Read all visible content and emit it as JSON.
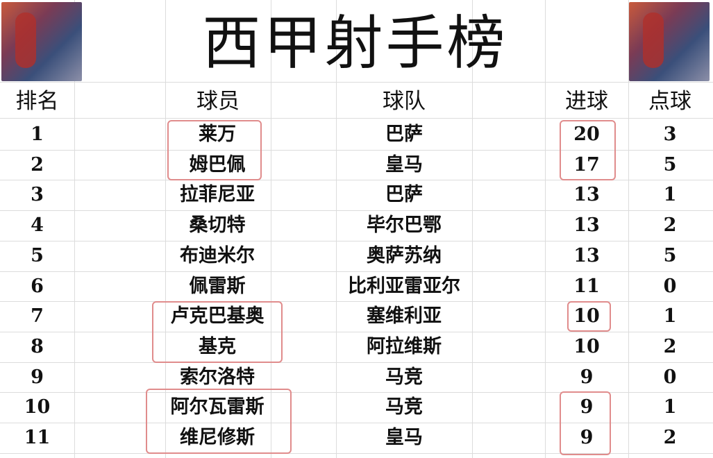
{
  "title": "西甲射手榜",
  "headers": {
    "rank": "排名",
    "player": "球员",
    "team": "球队",
    "goals": "进球",
    "penalties": "点球"
  },
  "rows": [
    {
      "rank": "1",
      "player": "莱万",
      "team": "巴萨",
      "goals": "20",
      "penalties": "3"
    },
    {
      "rank": "2",
      "player": "姆巴佩",
      "team": "皇马",
      "goals": "17",
      "penalties": "5"
    },
    {
      "rank": "3",
      "player": "拉菲尼亚",
      "team": "巴萨",
      "goals": "13",
      "penalties": "1"
    },
    {
      "rank": "4",
      "player": "桑切特",
      "team": "毕尔巴鄂",
      "goals": "13",
      "penalties": "2"
    },
    {
      "rank": "5",
      "player": "布迪米尔",
      "team": "奥萨苏纳",
      "goals": "13",
      "penalties": "5"
    },
    {
      "rank": "6",
      "player": "佩雷斯",
      "team": "比利亚雷亚尔",
      "goals": "11",
      "penalties": "0"
    },
    {
      "rank": "7",
      "player": "卢克巴基奥",
      "team": "塞维利亚",
      "goals": "10",
      "penalties": "1"
    },
    {
      "rank": "8",
      "player": "基克",
      "team": "阿拉维斯",
      "goals": "10",
      "penalties": "2"
    },
    {
      "rank": "9",
      "player": "索尔洛特",
      "team": "马竞",
      "goals": "9",
      "penalties": "0"
    },
    {
      "rank": "10",
      "player": "阿尔瓦雷斯",
      "team": "马竞",
      "goals": "9",
      "penalties": "1"
    },
    {
      "rank": "11",
      "player": "维尼修斯",
      "team": "皇马",
      "goals": "9",
      "penalties": "2"
    }
  ],
  "highlight_color": "#e08c8c"
}
